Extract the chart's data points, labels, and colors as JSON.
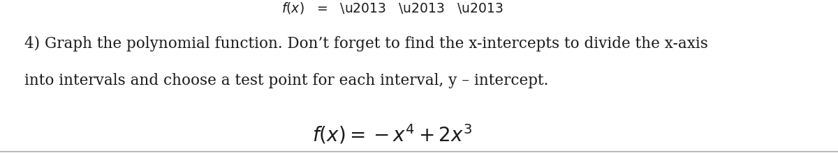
{
  "background_color": "#ffffff",
  "top_text_line1": "4) Graph the polynomial function. Don’t forget to find the x-intercepts to divide the x-axis",
  "top_text_line2": "into intervals and choose a test point for each interval, y – intercept.",
  "formula": "$f(x) = -x^4 + 2x^3$",
  "font_size_body": 15.5,
  "font_size_formula": 20,
  "text_color": "#1a1a1a",
  "bottom_border_color": "#aaaaaa"
}
